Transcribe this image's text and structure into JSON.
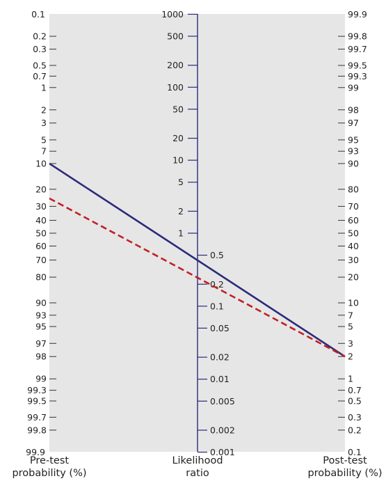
{
  "chart_data": {
    "type": "line",
    "axes": {
      "pre_test": {
        "title_lines": [
          "Pre-test",
          "probability (%)"
        ],
        "ticks": [
          "0.1",
          "0.2",
          "0.3",
          "0.5",
          "0.7",
          "1",
          "2",
          "3",
          "5",
          "7",
          "10",
          "20",
          "30",
          "40",
          "50",
          "60",
          "70",
          "80",
          "90",
          "93",
          "95",
          "97",
          "98",
          "99",
          "99.3",
          "99.5",
          "99.7",
          "99.8",
          "99.9"
        ]
      },
      "likelihood_ratio": {
        "title_lines": [
          "Likelihood",
          "ratio"
        ],
        "ticks": [
          "1000",
          "500",
          "200",
          "100",
          "50",
          "20",
          "10",
          "5",
          "2",
          "1",
          "0.5",
          "0.2",
          "0.1",
          "0.05",
          "0.02",
          "0.01",
          "0.005",
          "0.002",
          "0.001"
        ]
      },
      "post_test": {
        "title_lines": [
          "Post-test",
          "probability (%)"
        ],
        "ticks": [
          "99.9",
          "99.8",
          "99.7",
          "99.5",
          "99.3",
          "99",
          "98",
          "97",
          "95",
          "93",
          "90",
          "80",
          "70",
          "60",
          "50",
          "40",
          "30",
          "20",
          "10",
          "7",
          "3",
          "5",
          "2",
          "1",
          "0.7",
          "0.5",
          "0.3",
          "0.2",
          "0.1"
        ]
      }
    },
    "series": [
      {
        "style": "solid",
        "pre_test": 10,
        "likelihood_ratio": 0.2,
        "post_test": 2
      },
      {
        "style": "dashed",
        "pre_test": 25,
        "likelihood_ratio": 0.06,
        "post_test": 2
      }
    ],
    "colors": {
      "solid_line": "#2b2a7a",
      "dashed_line": "#c22026",
      "panel": "#e6e6e6",
      "axis": "#2b2a7a"
    }
  }
}
